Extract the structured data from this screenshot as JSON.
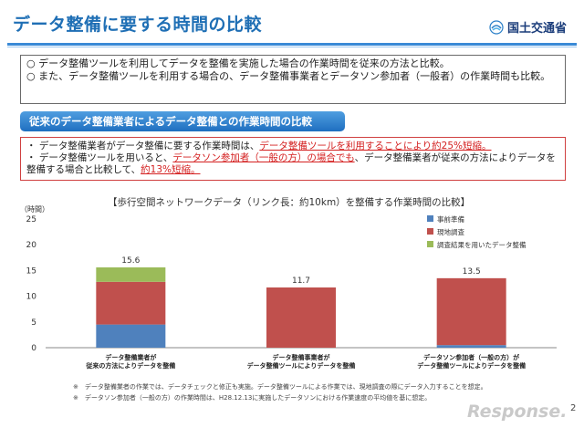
{
  "header": {
    "title": "データ整備に要する時間の比較",
    "logo_text": "国土交通省"
  },
  "intro": {
    "line1": "○ データ整備ツールを利用してデータを整備を実施した場合の作業時間を従来の方法と比較。",
    "line2": "○ また、データ整備ツールを利用する場合の、データ整備事業者とデータソン参加者（一般者）の作業時間も比較。"
  },
  "banner": {
    "label": "従来のデータ整備業者によるデータ整備との作業時間の比較"
  },
  "findings": {
    "b1_pre": "・ データ整備業者がデータ整備に要する作業時間は、",
    "b1_red": "データ整備ツールを利用することにより約25%短縮。",
    "b2_pre": "・ データ整備ツールを用いると、",
    "b2_red1": "データソン参加者（一般の方）の場合でも",
    "b2_mid": "、データ整備業者が従来の方法によりデータを整備する場合と比較して、",
    "b2_red2": "約13%短縮。"
  },
  "chart_data": {
    "type": "bar",
    "stacked": true,
    "title": "【歩行空間ネットワークデータ（リンク長：約10km）を整備する作業時間の比較】",
    "ylabel": "（時間）",
    "ylim": [
      0,
      25
    ],
    "yticks": [
      0,
      5,
      10,
      15,
      20,
      25
    ],
    "grid": false,
    "legend_position": "top-right",
    "categories": [
      [
        "データ整備業者が",
        "従来の方法によりデータを整備"
      ],
      [
        "データ整備事業者が",
        "データ整備ツールによりデータを整備"
      ],
      [
        "データソン参加者（一般の方）が",
        "データ整備ツールによりデータを整備"
      ]
    ],
    "series": [
      {
        "name": "事前準備",
        "color": "#4f81bd",
        "values": [
          4.5,
          0,
          0.5
        ]
      },
      {
        "name": "現地調査",
        "color": "#c0504d",
        "values": [
          8.3,
          11.7,
          13.0
        ]
      },
      {
        "name": "調査結果を用いたデータ整備",
        "color": "#9bbb59",
        "values": [
          2.8,
          0,
          0
        ]
      }
    ],
    "totals": [
      "15.6",
      "11.7",
      "13.5"
    ]
  },
  "footnotes": {
    "n1": "※　データ整備業者の作業では、データチェックと修正も実施。データ整備ツールによる作業では、現地調査の際にデータ入力することを想定。",
    "n2": "※　データソン参加者（一般の方）の作業時間は、H28.12.13に実施したデータソンにおける作業速度の平均値を基に想定。"
  },
  "watermark": "Response.",
  "page_number": "2"
}
